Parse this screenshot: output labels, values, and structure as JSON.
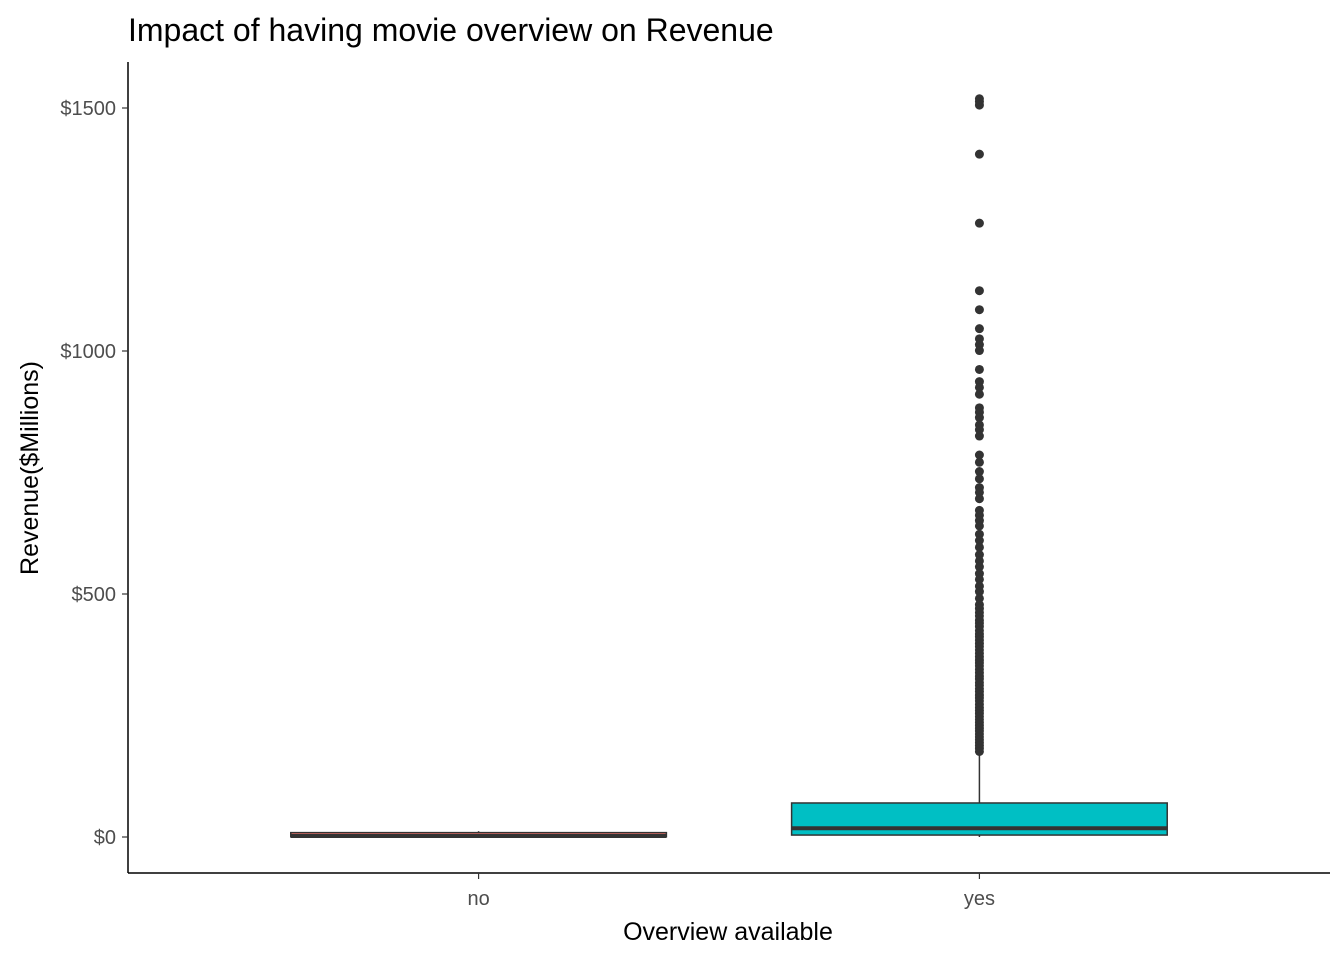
{
  "chart_data": {
    "type": "boxplot",
    "title": "Impact of having movie overview on Revenue",
    "xlabel": "Overview available",
    "ylabel": "Revenue($Millions)",
    "categories": [
      "no",
      "yes"
    ],
    "ylim": [
      -75,
      1595
    ],
    "yticks": [
      0,
      500,
      1000,
      1500
    ],
    "ytick_labels": [
      "$0",
      "$500",
      "$1000",
      "$1500"
    ],
    "grid": false,
    "legend": "none",
    "boxes": [
      {
        "category": "no",
        "fill": "#F8766D",
        "min": 0,
        "q1": 0.5,
        "median": 2,
        "q3": 9,
        "max": 12,
        "outliers": []
      },
      {
        "category": "yes",
        "fill": "#00BFC4",
        "min": 0,
        "q1": 4,
        "median": 18,
        "q3": 70,
        "max": 170,
        "outliers": [
          1519,
          1513,
          1506,
          1405,
          1263,
          1124,
          1085,
          1046,
          1025,
          1013,
          1001,
          962,
          937,
          925,
          911,
          883,
          874,
          863,
          848,
          838,
          825,
          786,
          771,
          752,
          737,
          719,
          709,
          696,
          672,
          662,
          651,
          640,
          623,
          610,
          596,
          581,
          568,
          556,
          542,
          530,
          516,
          505,
          491,
          478,
          470,
          462,
          455,
          446,
          440,
          433,
          425,
          418,
          412,
          405,
          398,
          392,
          385,
          378,
          371,
          364,
          358,
          352,
          345,
          338,
          331,
          325,
          318,
          312,
          305,
          299,
          292,
          286,
          280,
          273,
          266,
          260,
          254,
          248,
          242,
          236,
          230,
          224,
          218,
          212,
          206,
          200,
          194,
          188,
          182,
          176
        ]
      }
    ]
  }
}
